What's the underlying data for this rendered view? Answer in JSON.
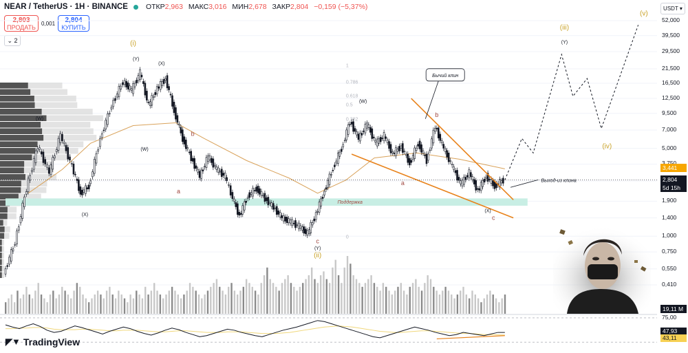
{
  "header": {
    "symbol": "NEAR / TetherUS · 1H · BINANCE",
    "ohlc": [
      {
        "label": "ОТКР",
        "value": "2,963"
      },
      {
        "label": "МАКС",
        "value": "3,016"
      },
      {
        "label": "МИН",
        "value": "2,678"
      },
      {
        "label": "ЗАКР",
        "value": "2,804"
      },
      {
        "label": "",
        "value": "−0,159 (−5,37%)"
      }
    ]
  },
  "trade": {
    "sell_price": "2,803",
    "sell_label": "ПРОДАТЬ",
    "spread": "0,001",
    "buy_price": "2,804",
    "buy_label": "КУПИТЬ",
    "indicators_count": "2"
  },
  "price_axis": {
    "currency": "USDT",
    "labels": [
      "52,000",
      "39,500",
      "29,500",
      "21,500",
      "16,500",
      "12,500",
      "9,500",
      "7,000",
      "5,000",
      "3,750",
      "2,750",
      "1,900",
      "1,400",
      "1,000",
      "0,750",
      "0,550",
      "0,410"
    ],
    "tags": [
      {
        "value": "3,441",
        "color": "#f7a600",
        "text_color": "#ffffff"
      },
      {
        "value": "2,804",
        "color": "#131722",
        "text_color": "#ffffff"
      },
      {
        "value": "5d 15h",
        "color": "#131722",
        "text_color": "#ffffff"
      }
    ],
    "volume_tag": "19,11 M",
    "rsi_labels": [
      "75,00"
    ],
    "rsi_tags": [
      {
        "value": "47,93",
        "color": "#131722",
        "text_color": "#ffffff"
      },
      {
        "value": "43,11",
        "color": "#f7d154",
        "text_color": "#131722"
      }
    ]
  },
  "colors": {
    "up": "#131722",
    "down": "#131722",
    "ma": "#d9a25a",
    "wedge": "#e8821a",
    "support_zone": "#c8eee4",
    "wave_orange": "#c9a227",
    "wave_red": "#a0473f",
    "rsi": "#131722",
    "rsi_ma": "#f0d77a"
  },
  "chart_data": {
    "type": "line",
    "symbol": "NEARUSDT",
    "interval": "1H",
    "scale": "log",
    "y_axis_ticks": [
      52,
      39.5,
      29.5,
      21.5,
      16.5,
      12.5,
      9.5,
      7,
      5,
      3.75,
      2.75,
      1.9,
      1.4,
      1.0,
      0.75,
      0.55,
      0.41
    ],
    "price_path": [
      {
        "t": 0,
        "price": 0.5
      },
      {
        "t": 4,
        "price": 0.9
      },
      {
        "t": 8,
        "price": 2.4
      },
      {
        "t": 12,
        "price": 5.2
      },
      {
        "t": 16,
        "price": 3.2
      },
      {
        "t": 20,
        "price": 6.4
      },
      {
        "t": 24,
        "price": 3.6
      },
      {
        "t": 27,
        "price": 2.2
      },
      {
        "t": 30,
        "price": 2.5
      },
      {
        "t": 34,
        "price": 6.0
      },
      {
        "t": 38,
        "price": 11.0
      },
      {
        "t": 42,
        "price": 17.0
      },
      {
        "t": 45,
        "price": 14.5
      },
      {
        "t": 48,
        "price": 20.0
      },
      {
        "t": 51,
        "price": 11.0
      },
      {
        "t": 54,
        "price": 15.0
      },
      {
        "t": 57,
        "price": 18.0
      },
      {
        "t": 60,
        "price": 10.0
      },
      {
        "t": 63,
        "price": 6.0
      },
      {
        "t": 66,
        "price": 4.2
      },
      {
        "t": 69,
        "price": 3.0
      },
      {
        "t": 72,
        "price": 4.3
      },
      {
        "t": 75,
        "price": 3.4
      },
      {
        "t": 78,
        "price": 3.0
      },
      {
        "t": 80,
        "price": 2.2
      },
      {
        "t": 83,
        "price": 1.45
      },
      {
        "t": 86,
        "price": 2.1
      },
      {
        "t": 89,
        "price": 2.4
      },
      {
        "t": 92,
        "price": 2.0
      },
      {
        "t": 95,
        "price": 1.7
      },
      {
        "t": 98,
        "price": 1.4
      },
      {
        "t": 101,
        "price": 1.3
      },
      {
        "t": 104,
        "price": 1.2
      },
      {
        "t": 107,
        "price": 1.05
      },
      {
        "t": 110,
        "price": 1.5
      },
      {
        "t": 113,
        "price": 2.3
      },
      {
        "t": 116,
        "price": 3.5
      },
      {
        "t": 119,
        "price": 5.0
      },
      {
        "t": 122,
        "price": 8.2
      },
      {
        "t": 125,
        "price": 6.0
      },
      {
        "t": 128,
        "price": 7.8
      },
      {
        "t": 131,
        "price": 5.5
      },
      {
        "t": 134,
        "price": 6.3
      },
      {
        "t": 137,
        "price": 4.5
      },
      {
        "t": 140,
        "price": 5.2
      },
      {
        "t": 143,
        "price": 3.8
      },
      {
        "t": 146,
        "price": 5.5
      },
      {
        "t": 149,
        "price": 4.0
      },
      {
        "t": 152,
        "price": 7.5
      },
      {
        "t": 155,
        "price": 5.0
      },
      {
        "t": 158,
        "price": 3.6
      },
      {
        "t": 161,
        "price": 2.6
      },
      {
        "t": 164,
        "price": 3.2
      },
      {
        "t": 167,
        "price": 2.3
      },
      {
        "t": 170,
        "price": 3.0
      },
      {
        "t": 173,
        "price": 2.5
      },
      {
        "t": 176,
        "price": 2.8
      }
    ],
    "moving_average": [
      {
        "t": 8,
        "price": 2.2
      },
      {
        "t": 20,
        "price": 3.4
      },
      {
        "t": 30,
        "price": 5.5
      },
      {
        "t": 45,
        "price": 7.6
      },
      {
        "t": 60,
        "price": 8.0
      },
      {
        "t": 70,
        "price": 6.0
      },
      {
        "t": 85,
        "price": 4.0
      },
      {
        "t": 100,
        "price": 2.9
      },
      {
        "t": 110,
        "price": 2.2
      },
      {
        "t": 120,
        "price": 2.8
      },
      {
        "t": 130,
        "price": 4.2
      },
      {
        "t": 145,
        "price": 4.6
      },
      {
        "t": 160,
        "price": 4.1
      },
      {
        "t": 176,
        "price": 3.44
      }
    ],
    "projection": [
      {
        "t": 176,
        "price": 2.8
      },
      {
        "t": 182,
        "price": 6.0
      },
      {
        "t": 186,
        "price": 4.6
      },
      {
        "t": 196,
        "price": 28.0
      },
      {
        "t": 200,
        "price": 13.0
      },
      {
        "t": 205,
        "price": 18.0
      },
      {
        "t": 210,
        "price": 7.2
      },
      {
        "t": 223,
        "price": 48.0
      }
    ],
    "wedge_upper": [
      {
        "t": 143,
        "price": 12.5
      },
      {
        "t": 179,
        "price": 1.95
      }
    ],
    "wedge_lower": [
      {
        "t": 122,
        "price": 4.5
      },
      {
        "t": 179,
        "price": 1.4
      }
    ],
    "support_zone": {
      "from": 1.75,
      "to": 2.0,
      "label": "Поддержка"
    },
    "fib_levels": [
      {
        "ratio": "1",
        "price": 23.0
      },
      {
        "ratio": "0.786",
        "price": 17.0
      },
      {
        "ratio": "0.618",
        "price": 13.2
      },
      {
        "ratio": "0.5",
        "price": 11.2
      },
      {
        "ratio": "0.382",
        "price": 8.6
      },
      {
        "ratio": "0",
        "price": 1.0
      }
    ],
    "wave_labels": [
      {
        "text": "(i)",
        "t": 45,
        "price": 33.0,
        "style": "orange"
      },
      {
        "text": "(ii)",
        "t": 110,
        "price": 0.68,
        "style": "orange"
      },
      {
        "text": "(iii)",
        "t": 197,
        "price": 44.0,
        "style": "orange"
      },
      {
        "text": "(iv)",
        "t": 212,
        "price": 5.0,
        "style": "orange"
      },
      {
        "text": "(v)",
        "t": 225,
        "price": 57.0,
        "style": "orange"
      },
      {
        "text": "(Y)",
        "t": 46,
        "price": 25.0,
        "style": "black"
      },
      {
        "text": "(X)",
        "t": 55,
        "price": 23.0,
        "style": "black"
      },
      {
        "text": "(W)",
        "t": 12,
        "price": 8.4,
        "style": "black"
      },
      {
        "text": "(W)",
        "t": 49,
        "price": 4.8,
        "style": "black"
      },
      {
        "text": "(X)",
        "t": 28,
        "price": 1.45,
        "style": "black"
      },
      {
        "text": "(W)",
        "t": 126,
        "price": 11.5,
        "style": "black"
      },
      {
        "text": "(Y)",
        "t": 110,
        "price": 0.78,
        "style": "black"
      },
      {
        "text": "(X)",
        "t": 170,
        "price": 1.55,
        "style": "black"
      },
      {
        "text": "(Y)",
        "t": 197,
        "price": 34.0,
        "style": "black"
      },
      {
        "text": "b",
        "t": 66,
        "price": 6.3,
        "style": "red"
      },
      {
        "text": "a",
        "t": 61,
        "price": 2.2,
        "style": "red"
      },
      {
        "text": "c",
        "t": 110,
        "price": 0.88,
        "style": "red"
      },
      {
        "text": "a",
        "t": 140,
        "price": 2.55,
        "style": "red"
      },
      {
        "text": "b",
        "t": 152,
        "price": 8.9,
        "style": "red"
      },
      {
        "text": "c",
        "t": 172,
        "price": 1.35,
        "style": "red"
      }
    ],
    "annotations": [
      {
        "text": "Бычий клин",
        "t": 155,
        "price": 19.0
      },
      {
        "text": "Выход-из клина",
        "t": 195,
        "price": 2.81
      }
    ],
    "volume": [
      3,
      4,
      5,
      3,
      6,
      4,
      5,
      7,
      5,
      4,
      6,
      8,
      5,
      4,
      3,
      5,
      6,
      4,
      5,
      7,
      6,
      5,
      4,
      6,
      8,
      7,
      5,
      4,
      3,
      4,
      5,
      6,
      5,
      4,
      6,
      7,
      5,
      4,
      6,
      5,
      4,
      3,
      5,
      4,
      6,
      5,
      4,
      7,
      5,
      6,
      8,
      6,
      5,
      4,
      5,
      6,
      7,
      6,
      5,
      4,
      5,
      6,
      8,
      7,
      6,
      5,
      4,
      5,
      6,
      7,
      8,
      9,
      7,
      6,
      5,
      7,
      8,
      6,
      5,
      6,
      7,
      9,
      8,
      7,
      6,
      5,
      8,
      10,
      12,
      9,
      8,
      7,
      6,
      8,
      9,
      10,
      8,
      7,
      6,
      7,
      8,
      9,
      10,
      12,
      9,
      8,
      10,
      11,
      9,
      8,
      12,
      14,
      10,
      8,
      12,
      15,
      13,
      10,
      9,
      8,
      7,
      8,
      9,
      10,
      8,
      7,
      6,
      8,
      7,
      6,
      5,
      6,
      7,
      8,
      6,
      5,
      7,
      8,
      9,
      7,
      6,
      8,
      10,
      9,
      7,
      6,
      5,
      6,
      7,
      6,
      5,
      4,
      5,
      6,
      7,
      5,
      4,
      6,
      5,
      4,
      3,
      4,
      5,
      6,
      5,
      4,
      3,
      4,
      5
    ],
    "rsi": [
      62,
      58,
      55,
      60,
      64,
      59,
      52,
      48,
      50,
      55,
      60,
      57,
      53,
      49,
      45,
      50,
      54,
      58,
      55,
      50,
      46,
      43,
      47,
      52,
      56,
      53,
      48,
      44,
      40,
      42,
      46,
      50,
      54,
      52,
      48,
      45,
      42,
      40,
      44,
      48,
      52,
      55,
      58,
      62,
      66,
      70,
      68,
      64,
      60,
      56,
      52,
      48,
      44,
      40,
      38,
      42,
      46,
      50,
      54,
      58,
      55,
      52,
      48,
      45,
      42,
      44,
      48,
      46,
      44,
      42,
      45,
      48,
      47.93
    ],
    "rsi_ma": [
      55,
      55,
      56,
      56,
      57,
      57,
      56,
      54,
      53,
      53,
      53,
      54,
      54,
      53,
      52,
      51,
      51,
      52,
      52,
      52,
      51,
      50,
      49,
      49,
      50,
      51,
      51,
      50,
      49,
      48,
      48,
      48,
      49,
      49,
      49,
      48,
      47,
      46,
      46,
      46,
      47,
      48,
      50,
      52,
      54,
      56,
      58,
      59,
      60,
      59,
      58,
      56,
      54,
      52,
      50,
      49,
      48,
      48,
      49,
      50,
      51,
      51,
      50,
      49,
      48,
      47,
      46,
      46,
      45,
      44,
      44,
      43.5,
      43.11
    ],
    "rsi_levels": [
      75
    ]
  }
}
